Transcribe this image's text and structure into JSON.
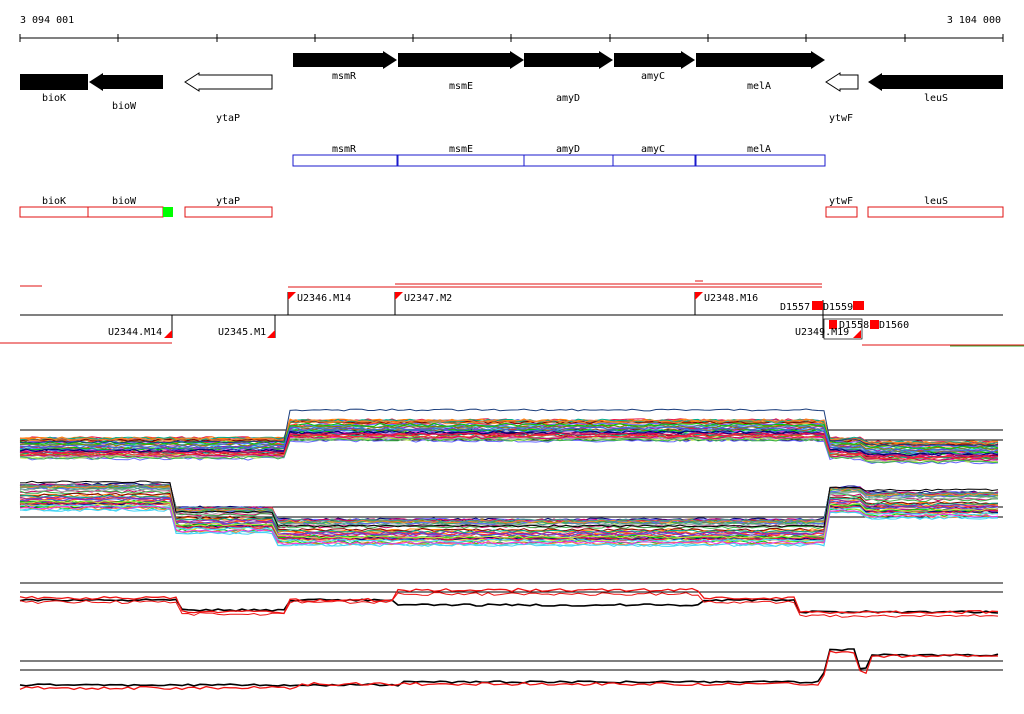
{
  "coordinates": {
    "start": "3 094 001",
    "end": "3 104 000"
  },
  "genes": [
    {
      "name": "bioK",
      "filled": true,
      "strand": "-"
    },
    {
      "name": "bioW",
      "filled": true,
      "strand": "-"
    },
    {
      "name": "ytaP",
      "filled": false,
      "strand": "-"
    },
    {
      "name": "msmR",
      "filled": true,
      "strand": "+"
    },
    {
      "name": "msmE",
      "filled": true,
      "strand": "+"
    },
    {
      "name": "amyD",
      "filled": true,
      "strand": "+"
    },
    {
      "name": "amyC",
      "filled": true,
      "strand": "+"
    },
    {
      "name": "melA",
      "filled": true,
      "strand": "+"
    },
    {
      "name": "ytwF",
      "filled": false,
      "strand": "-"
    },
    {
      "name": "leuS",
      "filled": true,
      "strand": "-"
    }
  ],
  "operon_blue": [
    "msmR",
    "msmE",
    "amyD",
    "amyC",
    "melA"
  ],
  "operon_red": [
    "bioK",
    "bioW",
    "ytaP",
    "ytwF",
    "leuS"
  ],
  "segments_upper": [
    "U2346.M14",
    "U2347.M2",
    "U2348.M16",
    "D1557",
    "D1559"
  ],
  "segments_lower": [
    "U2344.M14",
    "U2345.M1",
    "U2349.M19",
    "D1558",
    "D1560"
  ],
  "colors": {
    "gene_fill": "#000000",
    "operon_blue": "#1a1acc",
    "operon_red": "#e01010",
    "marker_red": "#ff0000",
    "marker_green": "#00ff00",
    "trace_black": "#000000",
    "trace_red": "#ee1111"
  }
}
